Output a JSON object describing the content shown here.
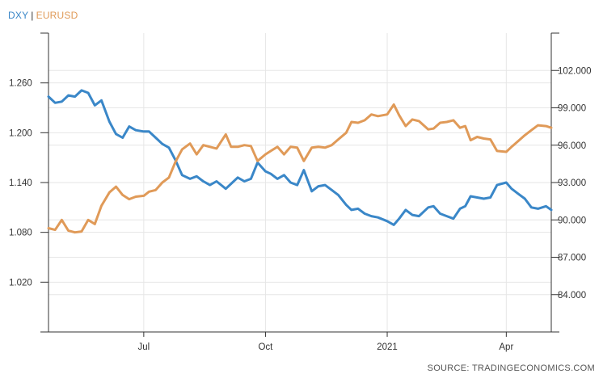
{
  "legend": {
    "series1": "DXY",
    "separator": "|",
    "series2": "EURUSD"
  },
  "source": "SOURCE: TRADINGECONOMICS.COM",
  "colors": {
    "DXY": "#3a87c8",
    "EURUSD": "#e09a58",
    "axis": "#333333",
    "grid": "#e6e6e6"
  },
  "chart_data": {
    "type": "line",
    "grid": true,
    "legend_position": "top-left",
    "x_ticks": [
      "Jul",
      "Oct",
      "2021",
      "Apr"
    ],
    "x_tick_dates": [
      "2020-07-01",
      "2020-10-01",
      "2021-01-01",
      "2021-04-01"
    ],
    "x_range": [
      "2020-04-20",
      "2021-05-05"
    ],
    "left_axis": {
      "series": "EURUSD",
      "ticks": [
        "1.260",
        "1.200",
        "1.140",
        "1.080",
        "1.020"
      ],
      "tick_values": [
        1.26,
        1.2,
        1.14,
        1.08,
        1.02
      ],
      "range": [
        0.96,
        1.32
      ]
    },
    "right_axis": {
      "series": "DXY",
      "ticks": [
        "102.000",
        "99.000",
        "96.000",
        "93.000",
        "90.000",
        "87.000",
        "84.000"
      ],
      "tick_values": [
        102,
        99,
        96,
        93,
        90,
        87,
        84
      ],
      "range": [
        81,
        105
      ]
    },
    "series": [
      {
        "name": "DXY",
        "axis": "right",
        "points": [
          [
            "2020-04-20",
            99.9
          ],
          [
            "2020-04-25",
            99.4
          ],
          [
            "2020-04-30",
            99.5
          ],
          [
            "2020-05-05",
            100.0
          ],
          [
            "2020-05-10",
            99.9
          ],
          [
            "2020-05-15",
            100.4
          ],
          [
            "2020-05-20",
            100.2
          ],
          [
            "2020-05-25",
            99.2
          ],
          [
            "2020-05-30",
            99.6
          ],
          [
            "2020-06-05",
            97.9
          ],
          [
            "2020-06-10",
            96.9
          ],
          [
            "2020-06-15",
            96.6
          ],
          [
            "2020-06-20",
            97.5
          ],
          [
            "2020-06-25",
            97.2
          ],
          [
            "2020-07-01",
            97.1
          ],
          [
            "2020-07-05",
            97.1
          ],
          [
            "2020-07-10",
            96.6
          ],
          [
            "2020-07-15",
            96.1
          ],
          [
            "2020-07-20",
            95.8
          ],
          [
            "2020-07-25",
            94.8
          ],
          [
            "2020-07-30",
            93.6
          ],
          [
            "2020-08-05",
            93.3
          ],
          [
            "2020-08-10",
            93.5
          ],
          [
            "2020-08-15",
            93.1
          ],
          [
            "2020-08-20",
            92.8
          ],
          [
            "2020-08-25",
            93.1
          ],
          [
            "2020-09-01",
            92.5
          ],
          [
            "2020-09-05",
            92.9
          ],
          [
            "2020-09-10",
            93.4
          ],
          [
            "2020-09-15",
            93.1
          ],
          [
            "2020-09-20",
            93.3
          ],
          [
            "2020-09-25",
            94.6
          ],
          [
            "2020-10-01",
            93.9
          ],
          [
            "2020-10-05",
            93.7
          ],
          [
            "2020-10-10",
            93.3
          ],
          [
            "2020-10-15",
            93.6
          ],
          [
            "2020-10-20",
            93.0
          ],
          [
            "2020-10-25",
            92.8
          ],
          [
            "2020-10-30",
            94.0
          ],
          [
            "2020-11-05",
            92.3
          ],
          [
            "2020-11-10",
            92.7
          ],
          [
            "2020-11-15",
            92.8
          ],
          [
            "2020-11-20",
            92.4
          ],
          [
            "2020-11-25",
            92.0
          ],
          [
            "2020-12-01",
            91.2
          ],
          [
            "2020-12-05",
            90.8
          ],
          [
            "2020-12-10",
            90.9
          ],
          [
            "2020-12-15",
            90.5
          ],
          [
            "2020-12-20",
            90.3
          ],
          [
            "2020-12-25",
            90.2
          ],
          [
            "2021-01-01",
            89.9
          ],
          [
            "2021-01-06",
            89.6
          ],
          [
            "2021-01-10",
            90.1
          ],
          [
            "2021-01-15",
            90.8
          ],
          [
            "2021-01-20",
            90.4
          ],
          [
            "2021-01-25",
            90.3
          ],
          [
            "2021-02-01",
            91.0
          ],
          [
            "2021-02-05",
            91.1
          ],
          [
            "2021-02-10",
            90.5
          ],
          [
            "2021-02-15",
            90.3
          ],
          [
            "2021-02-20",
            90.1
          ],
          [
            "2021-02-25",
            90.9
          ],
          [
            "2021-03-01",
            91.1
          ],
          [
            "2021-03-05",
            91.9
          ],
          [
            "2021-03-10",
            91.8
          ],
          [
            "2021-03-15",
            91.7
          ],
          [
            "2021-03-20",
            91.8
          ],
          [
            "2021-03-25",
            92.8
          ],
          [
            "2021-04-01",
            93.0
          ],
          [
            "2021-04-05",
            92.5
          ],
          [
            "2021-04-10",
            92.1
          ],
          [
            "2021-04-15",
            91.7
          ],
          [
            "2021-04-20",
            91.0
          ],
          [
            "2021-04-25",
            90.9
          ],
          [
            "2021-05-01",
            91.1
          ],
          [
            "2021-05-05",
            90.8
          ]
        ]
      },
      {
        "name": "EURUSD",
        "axis": "left",
        "points": [
          [
            "2020-04-20",
            1.085
          ],
          [
            "2020-04-25",
            1.083
          ],
          [
            "2020-04-30",
            1.095
          ],
          [
            "2020-05-05",
            1.082
          ],
          [
            "2020-05-10",
            1.08
          ],
          [
            "2020-05-15",
            1.081
          ],
          [
            "2020-05-20",
            1.095
          ],
          [
            "2020-05-25",
            1.09
          ],
          [
            "2020-05-30",
            1.112
          ],
          [
            "2020-06-05",
            1.128
          ],
          [
            "2020-06-10",
            1.135
          ],
          [
            "2020-06-15",
            1.125
          ],
          [
            "2020-06-20",
            1.12
          ],
          [
            "2020-06-25",
            1.123
          ],
          [
            "2020-07-01",
            1.124
          ],
          [
            "2020-07-05",
            1.129
          ],
          [
            "2020-07-10",
            1.131
          ],
          [
            "2020-07-15",
            1.14
          ],
          [
            "2020-07-20",
            1.146
          ],
          [
            "2020-07-25",
            1.165
          ],
          [
            "2020-07-30",
            1.18
          ],
          [
            "2020-08-05",
            1.187
          ],
          [
            "2020-08-10",
            1.174
          ],
          [
            "2020-08-15",
            1.185
          ],
          [
            "2020-08-20",
            1.183
          ],
          [
            "2020-08-25",
            1.181
          ],
          [
            "2020-09-01",
            1.198
          ],
          [
            "2020-09-05",
            1.183
          ],
          [
            "2020-09-10",
            1.183
          ],
          [
            "2020-09-15",
            1.185
          ],
          [
            "2020-09-20",
            1.184
          ],
          [
            "2020-09-25",
            1.166
          ],
          [
            "2020-10-01",
            1.174
          ],
          [
            "2020-10-05",
            1.178
          ],
          [
            "2020-10-10",
            1.183
          ],
          [
            "2020-10-15",
            1.174
          ],
          [
            "2020-10-20",
            1.183
          ],
          [
            "2020-10-25",
            1.182
          ],
          [
            "2020-10-30",
            1.166
          ],
          [
            "2020-11-05",
            1.182
          ],
          [
            "2020-11-10",
            1.183
          ],
          [
            "2020-11-15",
            1.182
          ],
          [
            "2020-11-20",
            1.185
          ],
          [
            "2020-11-25",
            1.192
          ],
          [
            "2020-12-01",
            1.2
          ],
          [
            "2020-12-05",
            1.213
          ],
          [
            "2020-12-10",
            1.212
          ],
          [
            "2020-12-15",
            1.215
          ],
          [
            "2020-12-20",
            1.222
          ],
          [
            "2020-12-25",
            1.22
          ],
          [
            "2021-01-01",
            1.222
          ],
          [
            "2021-01-06",
            1.234
          ],
          [
            "2021-01-10",
            1.221
          ],
          [
            "2021-01-15",
            1.208
          ],
          [
            "2021-01-20",
            1.216
          ],
          [
            "2021-01-25",
            1.214
          ],
          [
            "2021-02-01",
            1.204
          ],
          [
            "2021-02-05",
            1.205
          ],
          [
            "2021-02-10",
            1.212
          ],
          [
            "2021-02-15",
            1.213
          ],
          [
            "2021-02-20",
            1.215
          ],
          [
            "2021-02-25",
            1.206
          ],
          [
            "2021-03-01",
            1.208
          ],
          [
            "2021-03-05",
            1.191
          ],
          [
            "2021-03-10",
            1.195
          ],
          [
            "2021-03-15",
            1.193
          ],
          [
            "2021-03-20",
            1.192
          ],
          [
            "2021-03-25",
            1.178
          ],
          [
            "2021-04-01",
            1.177
          ],
          [
            "2021-04-05",
            1.183
          ],
          [
            "2021-04-10",
            1.19
          ],
          [
            "2021-04-15",
            1.197
          ],
          [
            "2021-04-20",
            1.203
          ],
          [
            "2021-04-25",
            1.209
          ],
          [
            "2021-05-01",
            1.208
          ],
          [
            "2021-05-05",
            1.206
          ]
        ]
      }
    ]
  }
}
